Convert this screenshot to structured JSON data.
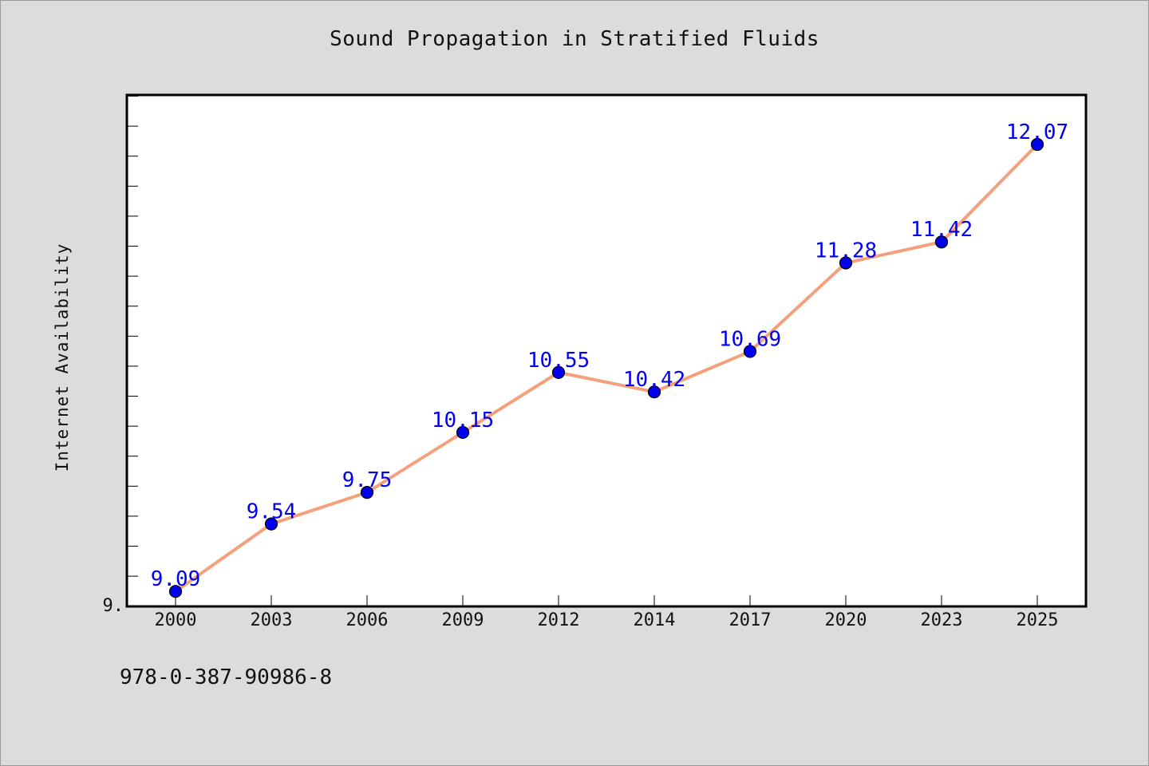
{
  "caption": "978-0-387-90986-8",
  "chart_data": {
    "type": "line",
    "title": "Sound Propagation in Stratified Fluids",
    "xlabel": "",
    "ylabel": "Internet Availability",
    "x": [
      "2000",
      "2003",
      "2006",
      "2009",
      "2012",
      "2014",
      "2017",
      "2020",
      "2023",
      "2025"
    ],
    "series": [
      {
        "values": [
          9.09,
          9.54,
          9.75,
          10.15,
          10.55,
          10.42,
          10.69,
          11.28,
          11.42,
          12.07
        ]
      }
    ],
    "data_labels": [
      "9.09",
      "9.54",
      "9.75",
      "10.15",
      "10.55",
      "10.42",
      "10.69",
      "11.28",
      "11.42",
      "12.07"
    ],
    "y_tick_labels": [
      "9."
    ],
    "ylim": [
      8.99,
      12.4
    ],
    "grid": false,
    "legend": "none",
    "colors": {
      "line": "#f4a07c",
      "marker": "#0000ee",
      "label": "#0000ee",
      "plot_bg": "#ffffff",
      "page_bg": "#dcdcdc"
    }
  }
}
